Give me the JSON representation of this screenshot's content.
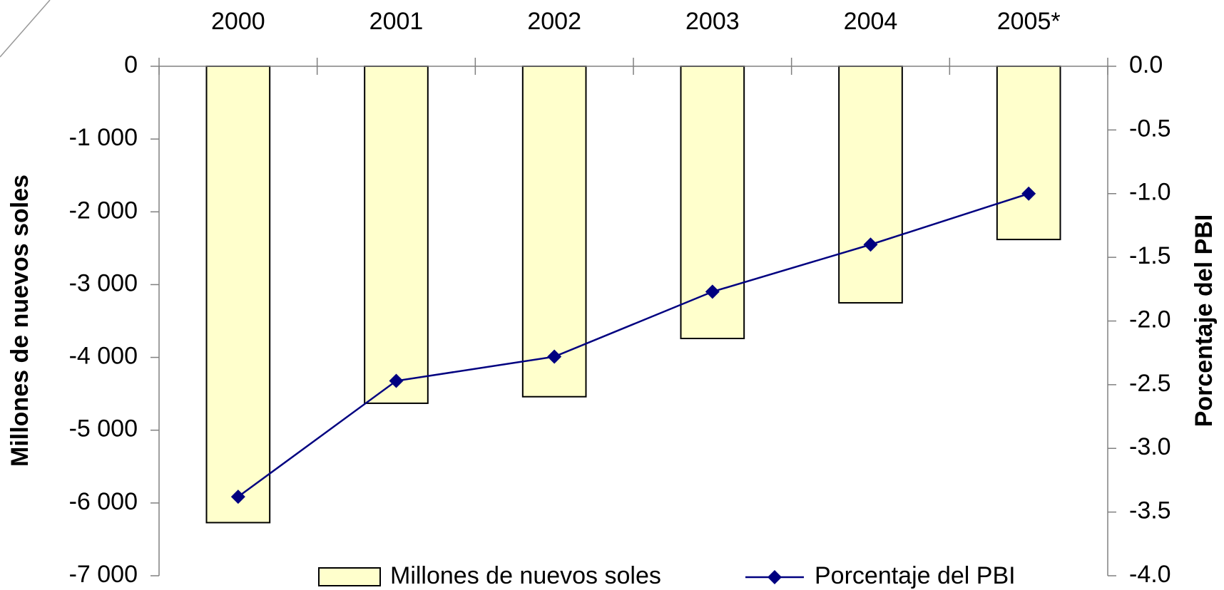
{
  "chart_data": {
    "type": "bar_line",
    "categories": [
      "2000",
      "2001",
      "2002",
      "2003",
      "2004",
      "2005*"
    ],
    "series": [
      {
        "name": "Millones de nuevos soles",
        "color": "#ffffcc",
        "values": [
          -6270,
          -4630,
          -4540,
          -3740,
          -3250,
          -2380
        ]
      },
      {
        "name": "Porcentaje del PBI",
        "color": "#000080",
        "axis": "y2",
        "values": [
          -3.38,
          -2.47,
          -2.28,
          -1.77,
          -1.4,
          -1.0
        ]
      }
    ],
    "ylabel": "Millones de nuevos soles",
    "y2label": "Porcentaje del PBI",
    "ylim": [
      -7000,
      0
    ],
    "yticks": [
      {
        "value": -7000,
        "label": "-7 000"
      },
      {
        "value": -6000,
        "label": "-6 000"
      },
      {
        "value": -5000,
        "label": "-5 000"
      },
      {
        "value": -4000,
        "label": "-4 000"
      },
      {
        "value": -3000,
        "label": "-3 000"
      },
      {
        "value": -2000,
        "label": "-2 000"
      },
      {
        "value": -1000,
        "label": "-1 000"
      },
      0
    ],
    "y2lim": [
      -4,
      0
    ],
    "y2ticks": [
      {
        "value": -4,
        "label": "-4.0"
      },
      -3.5,
      {
        "value": -3,
        "label": "-3.0"
      },
      -2.5,
      {
        "value": -2,
        "label": "-2.0"
      },
      -1.5,
      {
        "value": -1,
        "label": "-1.0"
      },
      -0.5,
      {
        "value": 0,
        "label": "0.0"
      }
    ]
  }
}
